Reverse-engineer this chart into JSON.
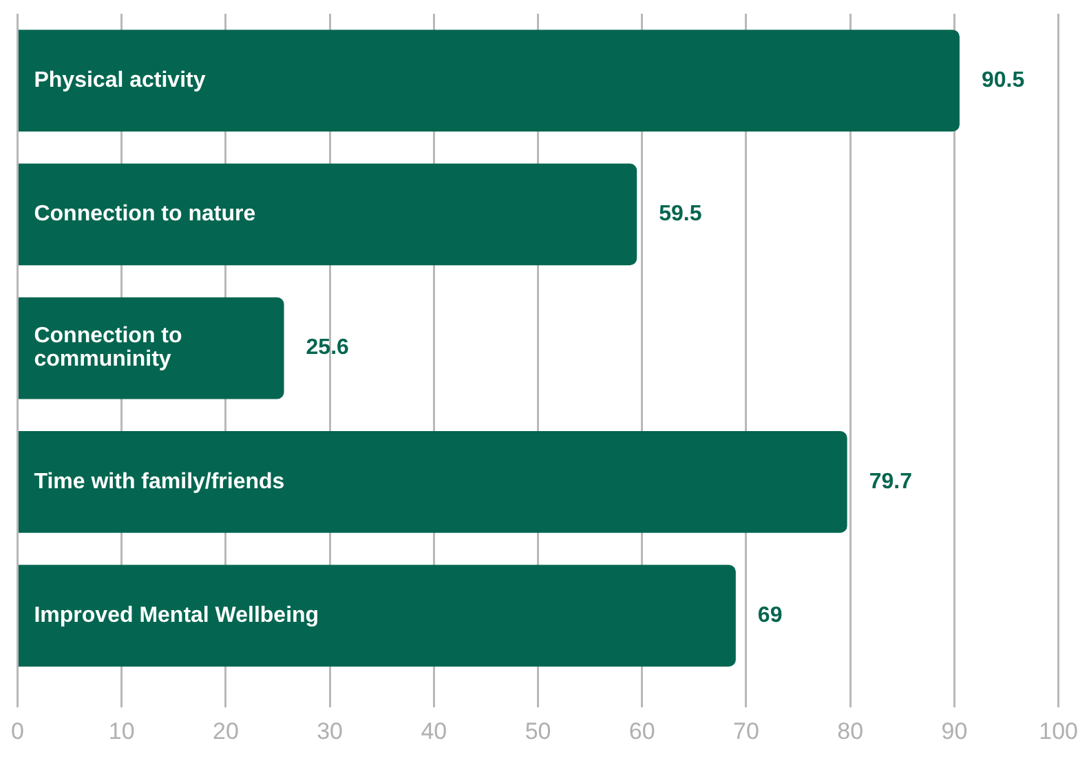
{
  "chart_data": {
    "type": "bar",
    "orientation": "horizontal",
    "categories": [
      "Physical activity",
      "Connection to nature",
      "Connection to communinity",
      "Time with family/friends",
      "Improved Mental Wellbeing"
    ],
    "values": [
      90.5,
      59.5,
      25.6,
      79.7,
      69
    ],
    "color": "#046650",
    "xlim": [
      0,
      100
    ],
    "xticks": [
      0,
      10,
      20,
      30,
      40,
      50,
      60,
      70,
      80,
      90,
      100
    ],
    "grid": "x",
    "data_labels": true
  }
}
